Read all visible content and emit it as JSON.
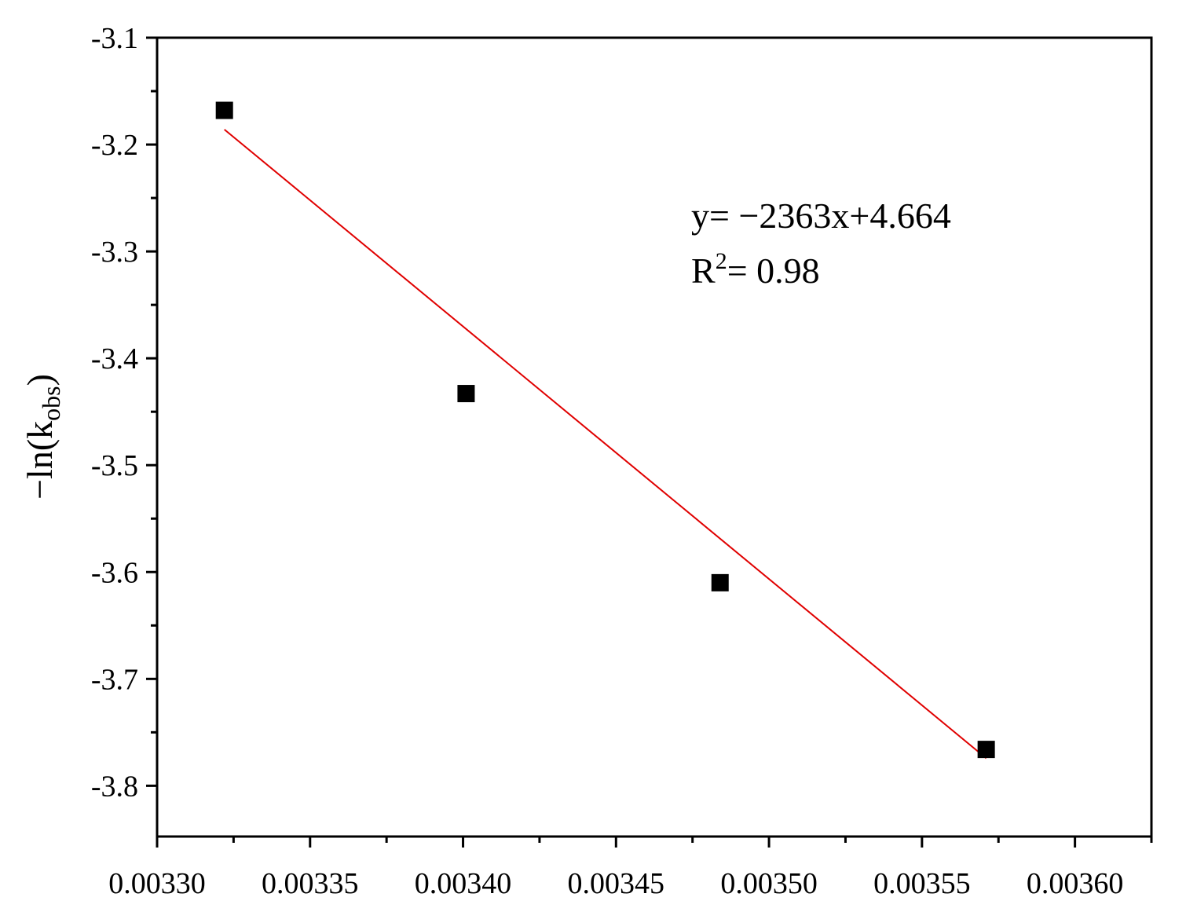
{
  "chart_data": {
    "type": "scatter",
    "title": "",
    "xlabel": "",
    "ylabel": {
      "prefix": "−ln(k",
      "subscript": "obs",
      "suffix": ")"
    },
    "xlim": [
      0.0033,
      0.003625
    ],
    "ylim": [
      -3.8475,
      -3.1
    ],
    "x_ticks": [
      0.0033,
      0.00335,
      0.0034,
      0.00345,
      0.0035,
      0.00355,
      0.0036
    ],
    "x_tick_labels": [
      "0.00330",
      "0.00335",
      "0.00340",
      "0.00345",
      "0.00350",
      "0.00355",
      "0.00360"
    ],
    "y_ticks": [
      -3.1,
      -3.2,
      -3.3,
      -3.4,
      -3.5,
      -3.6,
      -3.7,
      -3.8
    ],
    "y_tick_labels": [
      "-3.1",
      "-3.2",
      "-3.3",
      "-3.4",
      "-3.5",
      "-3.6",
      "-3.7",
      "-3.8"
    ],
    "grid": false,
    "series": [
      {
        "marker": "square",
        "color": "#000000",
        "x": [
          0.003322,
          0.003401,
          0.003484,
          0.003571
        ],
        "y": [
          -3.168,
          -3.433,
          -3.61,
          -3.766
        ]
      }
    ],
    "fit_line": {
      "color": "#e00000",
      "slope": -2363,
      "intercept": 4.664,
      "x_range": [
        0.003322,
        0.003571
      ],
      "equation_label": "y=  −2363x+4.664",
      "r2_prefix": "R",
      "r2_superscript": "2",
      "r2_suffix": "= 0.98"
    }
  }
}
